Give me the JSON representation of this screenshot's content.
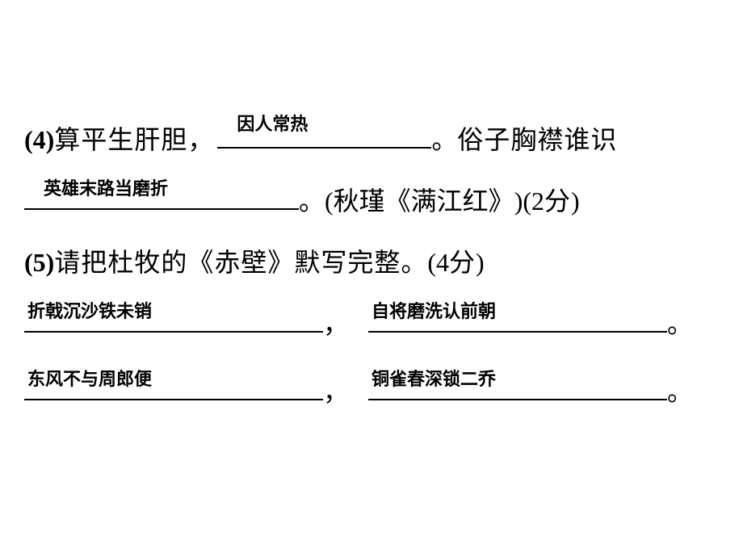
{
  "q4": {
    "label": "(4)",
    "text1": "算平生肝胆，",
    "blank1_answer": "因人常热",
    "punct1": "。",
    "text2": "俗子胸襟谁识",
    "blank2_answer": "英雄末路当磨折",
    "punct2": "。",
    "source_open": "(",
    "source": "秋瑾《满江红》",
    "source_close": ")",
    "score_open": "(2 ",
    "score_unit": "分",
    "score_close": ")"
  },
  "q5": {
    "label": "(5)",
    "text1": "请把杜牧的《赤壁》默写完整。",
    "score_open": "(4 ",
    "score_unit": "分",
    "score_close": ")",
    "blank3_answer": "折戟沉沙铁未销",
    "blank4_answer": "自将磨洗认前朝",
    "blank5_answer": "东风不与周郎便",
    "blank6_answer": "铜雀春深锁二乔",
    "comma": "，",
    "period": "。"
  }
}
